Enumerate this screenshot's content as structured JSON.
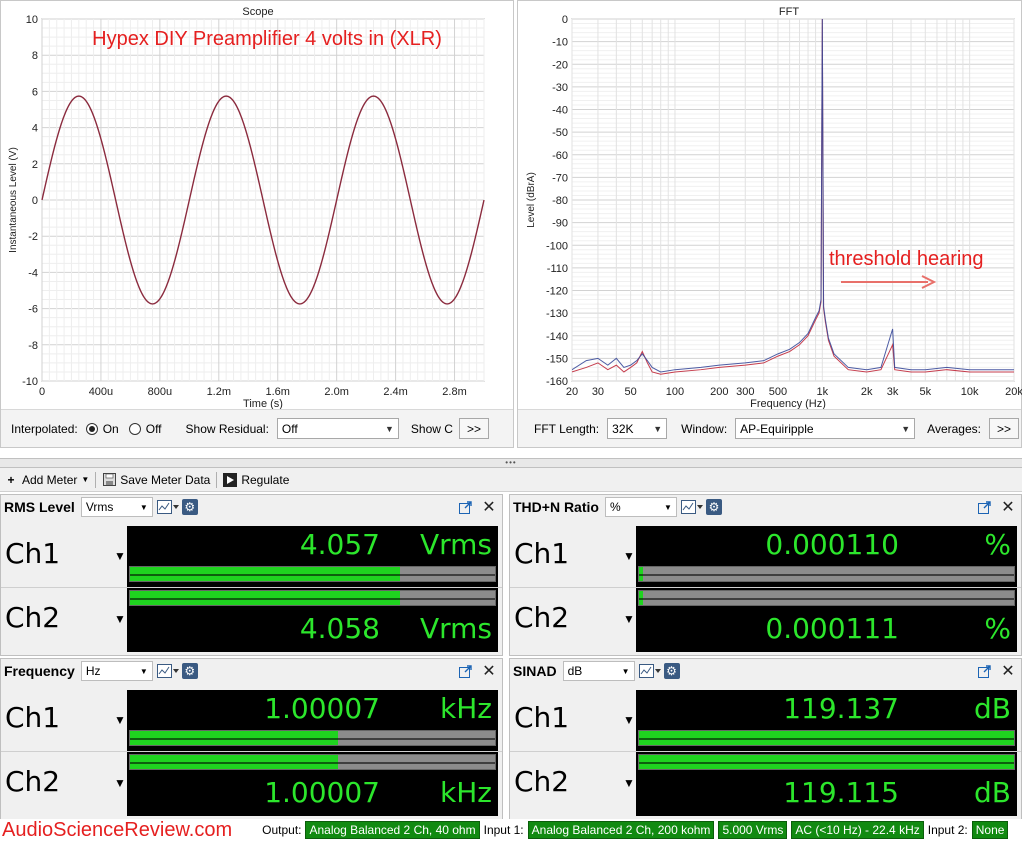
{
  "scope": {
    "title": "Scope",
    "annotation": "Hypex DIY Preamplifier 4 volts in (XLR)",
    "ylabel": "Instantaneous Level (V)",
    "xlabel": "Time (s)",
    "yticks": [
      "10",
      "8",
      "6",
      "4",
      "2",
      "0",
      "-2",
      "-4",
      "-6",
      "-8",
      "-10"
    ],
    "xticks": [
      "0",
      "400u",
      "800u",
      "1.2m",
      "1.6m",
      "2.0m",
      "2.4m",
      "2.8m"
    ],
    "controls": {
      "interpolated_label": "Interpolated:",
      "on_label": "On",
      "off_label": "Off",
      "show_residual_label": "Show Residual:",
      "residual_value": "Off",
      "show_c_label": "Show C",
      "more": ">>"
    }
  },
  "fft": {
    "title": "FFT",
    "annotation": "threshold hearing",
    "ylabel": "Level (dBrA)",
    "xlabel": "Frequency (Hz)",
    "yticks": [
      "0",
      "-10",
      "-20",
      "-30",
      "-40",
      "-50",
      "-60",
      "-70",
      "-80",
      "-90",
      "-100",
      "-110",
      "-120",
      "-130",
      "-140",
      "-150",
      "-160"
    ],
    "xticks": [
      "20",
      "30",
      "50",
      "100",
      "200",
      "300",
      "500",
      "1k",
      "2k",
      "3k",
      "5k",
      "10k",
      "20k"
    ],
    "controls": {
      "fft_length_label": "FFT Length:",
      "fft_length_value": "32K",
      "window_label": "Window:",
      "window_value": "AP-Equiripple",
      "averages_label": "Averages:",
      "more": ">>"
    }
  },
  "chart_data": [
    {
      "type": "line",
      "title": "Scope",
      "xlabel": "Time (s)",
      "ylabel": "Instantaneous Level (V)",
      "xlim": [
        0,
        0.003
      ],
      "ylim": [
        -10,
        10
      ],
      "grid": true,
      "series": [
        {
          "amplitude": 5.74,
          "frequency_hz": 1000,
          "phase_start": 0,
          "color": "#8b2b3e"
        }
      ]
    },
    {
      "type": "line",
      "title": "FFT",
      "xlabel": "Frequency (Hz)",
      "ylabel": "Level (dBrA)",
      "xlim": [
        20,
        20000
      ],
      "ylim": [
        -160,
        0
      ],
      "xscale": "log",
      "grid": true,
      "series": [
        {
          "color": "#c0283a",
          "points": [
            [
              20,
              -156
            ],
            [
              25,
              -154
            ],
            [
              30,
              -152
            ],
            [
              35,
              -155
            ],
            [
              40,
              -153
            ],
            [
              45,
              -156
            ],
            [
              50,
              -154
            ],
            [
              55,
              -152
            ],
            [
              60,
              -147
            ],
            [
              65,
              -152
            ],
            [
              70,
              -156
            ],
            [
              80,
              -157
            ],
            [
              100,
              -156
            ],
            [
              150,
              -155
            ],
            [
              200,
              -154
            ],
            [
              300,
              -153
            ],
            [
              400,
              -152
            ],
            [
              500,
              -149
            ],
            [
              600,
              -147
            ],
            [
              700,
              -144
            ],
            [
              800,
              -140
            ],
            [
              900,
              -133
            ],
            [
              950,
              -130
            ],
            [
              980,
              -125
            ],
            [
              1000,
              0
            ],
            [
              1020,
              -128
            ],
            [
              1050,
              -134
            ],
            [
              1100,
              -142
            ],
            [
              1200,
              -149
            ],
            [
              1500,
              -155
            ],
            [
              2000,
              -156
            ],
            [
              2500,
              -155
            ],
            [
              3000,
              -144
            ],
            [
              3100,
              -155
            ],
            [
              4000,
              -156
            ],
            [
              5000,
              -156
            ],
            [
              7000,
              -155
            ],
            [
              10000,
              -156
            ],
            [
              15000,
              -156
            ],
            [
              20000,
              -156
            ]
          ]
        },
        {
          "color": "#3a4a9a",
          "points": [
            [
              20,
              -155
            ],
            [
              25,
              -151
            ],
            [
              30,
              -150
            ],
            [
              35,
              -153
            ],
            [
              40,
              -150
            ],
            [
              45,
              -154
            ],
            [
              50,
              -153
            ],
            [
              55,
              -151
            ],
            [
              60,
              -148
            ],
            [
              65,
              -151
            ],
            [
              70,
              -154
            ],
            [
              80,
              -156
            ],
            [
              100,
              -155
            ],
            [
              150,
              -154
            ],
            [
              200,
              -153
            ],
            [
              300,
              -152
            ],
            [
              400,
              -151
            ],
            [
              500,
              -148
            ],
            [
              600,
              -146
            ],
            [
              700,
              -143
            ],
            [
              800,
              -139
            ],
            [
              900,
              -132
            ],
            [
              950,
              -129
            ],
            [
              980,
              -124
            ],
            [
              1000,
              0
            ],
            [
              1020,
              -127
            ],
            [
              1050,
              -133
            ],
            [
              1100,
              -141
            ],
            [
              1200,
              -148
            ],
            [
              1500,
              -154
            ],
            [
              2000,
              -155
            ],
            [
              2500,
              -154
            ],
            [
              3000,
              -137
            ],
            [
              3100,
              -154
            ],
            [
              4000,
              -155
            ],
            [
              5000,
              -155
            ],
            [
              7000,
              -154
            ],
            [
              10000,
              -155
            ],
            [
              15000,
              -155
            ],
            [
              20000,
              -155
            ]
          ]
        }
      ]
    }
  ],
  "splitter_grip": "•••",
  "toolbar": {
    "add_meter": "Add Meter",
    "save_meter_data": "Save Meter Data",
    "regulate": "Regulate"
  },
  "meters": {
    "rms": {
      "title": "RMS Level",
      "unit_select": "Vrms",
      "ch1": {
        "label": "Ch1",
        "value": "4.057",
        "unit": "Vrms",
        "bar": 0.74
      },
      "ch2": {
        "label": "Ch2",
        "value": "4.058",
        "unit": "Vrms",
        "bar": 0.74
      }
    },
    "thd": {
      "title": "THD+N Ratio",
      "unit_select": "%",
      "ch1": {
        "label": "Ch1",
        "value": "0.000110",
        "unit": "%",
        "bar": 0.01
      },
      "ch2": {
        "label": "Ch2",
        "value": "0.000111",
        "unit": "%",
        "bar": 0.01
      }
    },
    "freq": {
      "title": "Frequency",
      "unit_select": "Hz",
      "ch1": {
        "label": "Ch1",
        "value": "1.00007",
        "unit": "kHz",
        "bar": 0.57
      },
      "ch2": {
        "label": "Ch2",
        "value": "1.00007",
        "unit": "kHz",
        "bar": 0.57
      }
    },
    "sinad": {
      "title": "SINAD",
      "unit_select": "dB",
      "ch1": {
        "label": "Ch1",
        "value": "119.137",
        "unit": "dB",
        "bar": 1.0
      },
      "ch2": {
        "label": "Ch2",
        "value": "119.115",
        "unit": "dB",
        "bar": 1.0
      }
    }
  },
  "status": {
    "brand": "AudioScienceReview.com",
    "output_label": "Output:",
    "output_value": "Analog Balanced 2 Ch, 40 ohm",
    "input1_label": "Input 1:",
    "input1_value": "Analog Balanced 2 Ch, 200 kohm",
    "input1_level": "5.000 Vrms",
    "input1_coupling": "AC (<10 Hz) - 22.4 kHz",
    "input2_label": "Input 2:",
    "input2_value": "None"
  },
  "colors": {
    "meter_green": "#2ce62c",
    "brand_red": "#e52020",
    "status_green": "#118a11"
  }
}
